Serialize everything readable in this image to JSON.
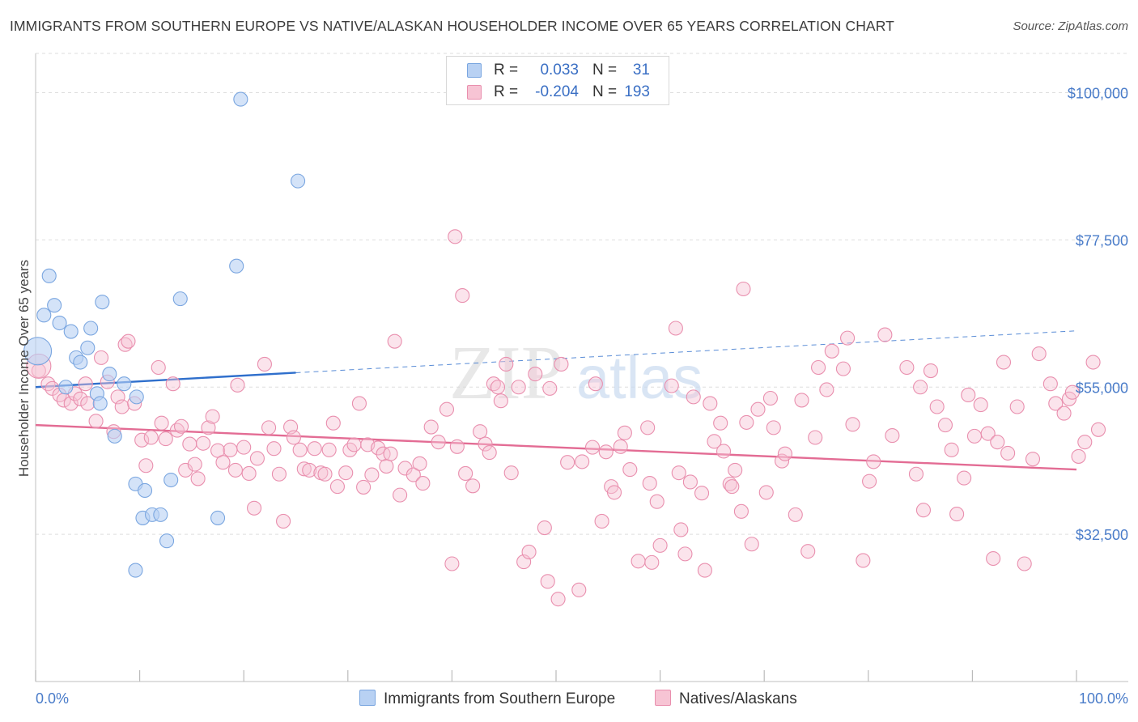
{
  "title": "IMMIGRANTS FROM SOUTHERN EUROPE VS NATIVE/ALASKAN HOUSEHOLDER INCOME OVER 65 YEARS CORRELATION CHART",
  "source": "Source: ZipAtlas.com",
  "watermark": {
    "zip": "ZIP",
    "atlas": "atlas"
  },
  "colors": {
    "blue_fill": "#b8d1f3",
    "blue_stroke": "#7aa6e0",
    "blue_line": "#2f6fcc",
    "pink_fill": "#f7c4d4",
    "pink_stroke": "#e98fae",
    "pink_line": "#e36c94",
    "tick_label": "#4a7cc9",
    "grid": "#dddddd"
  },
  "legend": {
    "rows": [
      {
        "label": "R =",
        "r": "0.033",
        "n_label": "N =",
        "n": "31",
        "color": "blue"
      },
      {
        "label": "R =",
        "r": "-0.204",
        "n_label": "N =",
        "n": "193",
        "color": "pink"
      }
    ]
  },
  "bottom_legend": [
    {
      "label": "Immigrants from Southern Europe",
      "color": "blue"
    },
    {
      "label": "Natives/Alaskans",
      "color": "pink"
    }
  ],
  "chart_data": {
    "type": "scatter",
    "ylabel": "Householder Income Over 65 years",
    "xlim": [
      0,
      100
    ],
    "ylim": [
      10000,
      106000
    ],
    "x_tick_labels": [
      "0.0%",
      "100.0%"
    ],
    "y_ticks": [
      {
        "value": 100000,
        "label": "$100,000"
      },
      {
        "value": 77500,
        "label": "$77,500"
      },
      {
        "value": 55000,
        "label": "$55,000"
      },
      {
        "value": 32500,
        "label": "$32,500"
      }
    ],
    "grid": true,
    "legend_position": "top-center",
    "series": [
      {
        "name": "Immigrants from Southern Europe",
        "color": "blue",
        "trend": {
          "x": [
            0,
            25
          ],
          "y": [
            55000,
            57200
          ]
        },
        "trend_extension": {
          "x": [
            25,
            100
          ],
          "y": [
            57200,
            63600
          ]
        },
        "points": [
          [
            0.2,
            60500
          ],
          [
            0.8,
            66000
          ],
          [
            1.3,
            72000
          ],
          [
            1.8,
            67500
          ],
          [
            2.3,
            64800
          ],
          [
            2.9,
            55000
          ],
          [
            3.4,
            63500
          ],
          [
            3.9,
            59500
          ],
          [
            4.3,
            58800
          ],
          [
            5.0,
            61000
          ],
          [
            5.3,
            64000
          ],
          [
            5.9,
            54000
          ],
          [
            6.4,
            68000
          ],
          [
            6.2,
            52500
          ],
          [
            7.1,
            57000
          ],
          [
            7.6,
            47500
          ],
          [
            8.5,
            55500
          ],
          [
            9.7,
            53500
          ],
          [
            9.6,
            40200
          ],
          [
            10.5,
            39200
          ],
          [
            10.3,
            35000
          ],
          [
            11.2,
            35500
          ],
          [
            12.0,
            35500
          ],
          [
            13.0,
            40800
          ],
          [
            12.6,
            31500
          ],
          [
            9.6,
            27000
          ],
          [
            13.9,
            68500
          ],
          [
            17.5,
            35000
          ],
          [
            19.3,
            73500
          ],
          [
            19.7,
            99000
          ],
          [
            25.2,
            86500
          ]
        ]
      },
      {
        "name": "Natives/Alaskans",
        "color": "pink",
        "trend": {
          "x": [
            0,
            100
          ],
          "y": [
            49200,
            42400
          ]
        },
        "points": [
          [
            0.3,
            57500
          ],
          [
            1.2,
            55500
          ],
          [
            1.6,
            54800
          ],
          [
            2.3,
            53800
          ],
          [
            2.7,
            53000
          ],
          [
            3.4,
            52500
          ],
          [
            3.8,
            54000
          ],
          [
            4.3,
            53200
          ],
          [
            4.8,
            55500
          ],
          [
            5.0,
            52500
          ],
          [
            5.8,
            49800
          ],
          [
            6.3,
            59500
          ],
          [
            6.9,
            55800
          ],
          [
            7.5,
            48200
          ],
          [
            7.9,
            53500
          ],
          [
            8.3,
            52000
          ],
          [
            8.6,
            61500
          ],
          [
            8.9,
            62000
          ],
          [
            9.5,
            52500
          ],
          [
            10.2,
            46900
          ],
          [
            10.6,
            43000
          ],
          [
            11.1,
            47300
          ],
          [
            11.8,
            58000
          ],
          [
            12.1,
            49500
          ],
          [
            12.5,
            47100
          ],
          [
            13.2,
            55500
          ],
          [
            13.6,
            48400
          ],
          [
            14.0,
            49000
          ],
          [
            14.4,
            42300
          ],
          [
            14.8,
            46300
          ],
          [
            15.3,
            43200
          ],
          [
            15.6,
            41000
          ],
          [
            16.1,
            46400
          ],
          [
            16.6,
            48800
          ],
          [
            17.0,
            50500
          ],
          [
            17.5,
            45300
          ],
          [
            18.0,
            43500
          ],
          [
            18.7,
            45400
          ],
          [
            19.2,
            42300
          ],
          [
            19.4,
            55300
          ],
          [
            20.0,
            45800
          ],
          [
            20.5,
            41800
          ],
          [
            21.0,
            36500
          ],
          [
            21.3,
            44100
          ],
          [
            22.0,
            58500
          ],
          [
            22.4,
            48800
          ],
          [
            22.9,
            45600
          ],
          [
            23.4,
            41700
          ],
          [
            23.8,
            34500
          ],
          [
            24.5,
            48900
          ],
          [
            24.8,
            47300
          ],
          [
            25.4,
            45400
          ],
          [
            25.8,
            42500
          ],
          [
            26.3,
            42300
          ],
          [
            26.8,
            45600
          ],
          [
            27.4,
            41900
          ],
          [
            27.8,
            41700
          ],
          [
            28.2,
            45400
          ],
          [
            28.6,
            49500
          ],
          [
            29.0,
            39800
          ],
          [
            29.8,
            41900
          ],
          [
            30.2,
            45400
          ],
          [
            30.6,
            46200
          ],
          [
            31.1,
            52500
          ],
          [
            31.5,
            39700
          ],
          [
            31.9,
            46200
          ],
          [
            32.3,
            41600
          ],
          [
            32.9,
            45700
          ],
          [
            33.4,
            44800
          ],
          [
            33.7,
            42900
          ],
          [
            34.1,
            44800
          ],
          [
            34.5,
            62000
          ],
          [
            35.0,
            38500
          ],
          [
            35.5,
            42600
          ],
          [
            36.3,
            41600
          ],
          [
            36.9,
            43300
          ],
          [
            37.2,
            40300
          ],
          [
            38.0,
            48900
          ],
          [
            38.7,
            46600
          ],
          [
            39.5,
            51600
          ],
          [
            40.0,
            28000
          ],
          [
            40.3,
            78000
          ],
          [
            40.5,
            45900
          ],
          [
            41.0,
            69000
          ],
          [
            41.3,
            41800
          ],
          [
            42.0,
            39900
          ],
          [
            42.7,
            48200
          ],
          [
            43.2,
            46300
          ],
          [
            43.6,
            45000
          ],
          [
            44.0,
            55500
          ],
          [
            44.4,
            55000
          ],
          [
            44.7,
            52900
          ],
          [
            45.2,
            58500
          ],
          [
            45.7,
            41900
          ],
          [
            46.4,
            55000
          ],
          [
            46.9,
            28300
          ],
          [
            47.4,
            29800
          ],
          [
            48.0,
            57000
          ],
          [
            48.9,
            33500
          ],
          [
            49.2,
            25300
          ],
          [
            49.4,
            54800
          ],
          [
            50.2,
            22600
          ],
          [
            50.5,
            58500
          ],
          [
            51.1,
            43500
          ],
          [
            52.2,
            24000
          ],
          [
            52.5,
            43600
          ],
          [
            53.5,
            45800
          ],
          [
            53.8,
            55500
          ],
          [
            54.4,
            34500
          ],
          [
            54.8,
            45100
          ],
          [
            55.3,
            39800
          ],
          [
            55.6,
            38900
          ],
          [
            56.2,
            45900
          ],
          [
            56.6,
            48000
          ],
          [
            57.1,
            42400
          ],
          [
            57.9,
            28400
          ],
          [
            58.8,
            48800
          ],
          [
            59.0,
            40300
          ],
          [
            59.2,
            28200
          ],
          [
            59.7,
            37500
          ],
          [
            60.0,
            30800
          ],
          [
            61.1,
            55200
          ],
          [
            61.5,
            64000
          ],
          [
            61.8,
            41900
          ],
          [
            62.0,
            33200
          ],
          [
            62.4,
            29500
          ],
          [
            62.9,
            40500
          ],
          [
            63.2,
            53500
          ],
          [
            64.0,
            38800
          ],
          [
            64.3,
            27000
          ],
          [
            64.8,
            52500
          ],
          [
            65.2,
            46700
          ],
          [
            65.8,
            49500
          ],
          [
            66.1,
            45200
          ],
          [
            66.7,
            40200
          ],
          [
            66.9,
            39800
          ],
          [
            67.2,
            42300
          ],
          [
            67.8,
            36000
          ],
          [
            68.0,
            70000
          ],
          [
            68.3,
            49600
          ],
          [
            68.8,
            31000
          ],
          [
            69.4,
            51600
          ],
          [
            70.2,
            38900
          ],
          [
            70.6,
            53300
          ],
          [
            70.9,
            48800
          ],
          [
            71.7,
            43700
          ],
          [
            72.0,
            44800
          ],
          [
            73.0,
            35500
          ],
          [
            73.6,
            53000
          ],
          [
            74.2,
            29900
          ],
          [
            74.9,
            47300
          ],
          [
            75.2,
            58000
          ],
          [
            76.0,
            54600
          ],
          [
            76.5,
            60500
          ],
          [
            77.6,
            57800
          ],
          [
            78.0,
            62500
          ],
          [
            78.5,
            49300
          ],
          [
            79.5,
            28500
          ],
          [
            80.1,
            40600
          ],
          [
            80.5,
            43600
          ],
          [
            81.6,
            63000
          ],
          [
            82.3,
            47600
          ],
          [
            83.7,
            58000
          ],
          [
            84.6,
            41700
          ],
          [
            85.0,
            55000
          ],
          [
            85.3,
            36200
          ],
          [
            86.0,
            57500
          ],
          [
            86.6,
            52000
          ],
          [
            87.4,
            49200
          ],
          [
            88.0,
            45400
          ],
          [
            88.5,
            35600
          ],
          [
            89.2,
            41100
          ],
          [
            89.6,
            53800
          ],
          [
            90.2,
            47500
          ],
          [
            90.8,
            52300
          ],
          [
            91.5,
            47900
          ],
          [
            92.0,
            28800
          ],
          [
            92.4,
            46600
          ],
          [
            93.0,
            58800
          ],
          [
            93.4,
            44900
          ],
          [
            94.3,
            52000
          ],
          [
            95.0,
            28000
          ],
          [
            95.8,
            44000
          ],
          [
            96.4,
            60100
          ],
          [
            97.5,
            55500
          ],
          [
            98.0,
            52500
          ],
          [
            98.8,
            51000
          ],
          [
            99.3,
            53200
          ],
          [
            99.6,
            54200
          ],
          [
            100.2,
            44400
          ],
          [
            100.8,
            46600
          ],
          [
            101.6,
            58800
          ],
          [
            102.1,
            48500
          ]
        ]
      }
    ]
  }
}
